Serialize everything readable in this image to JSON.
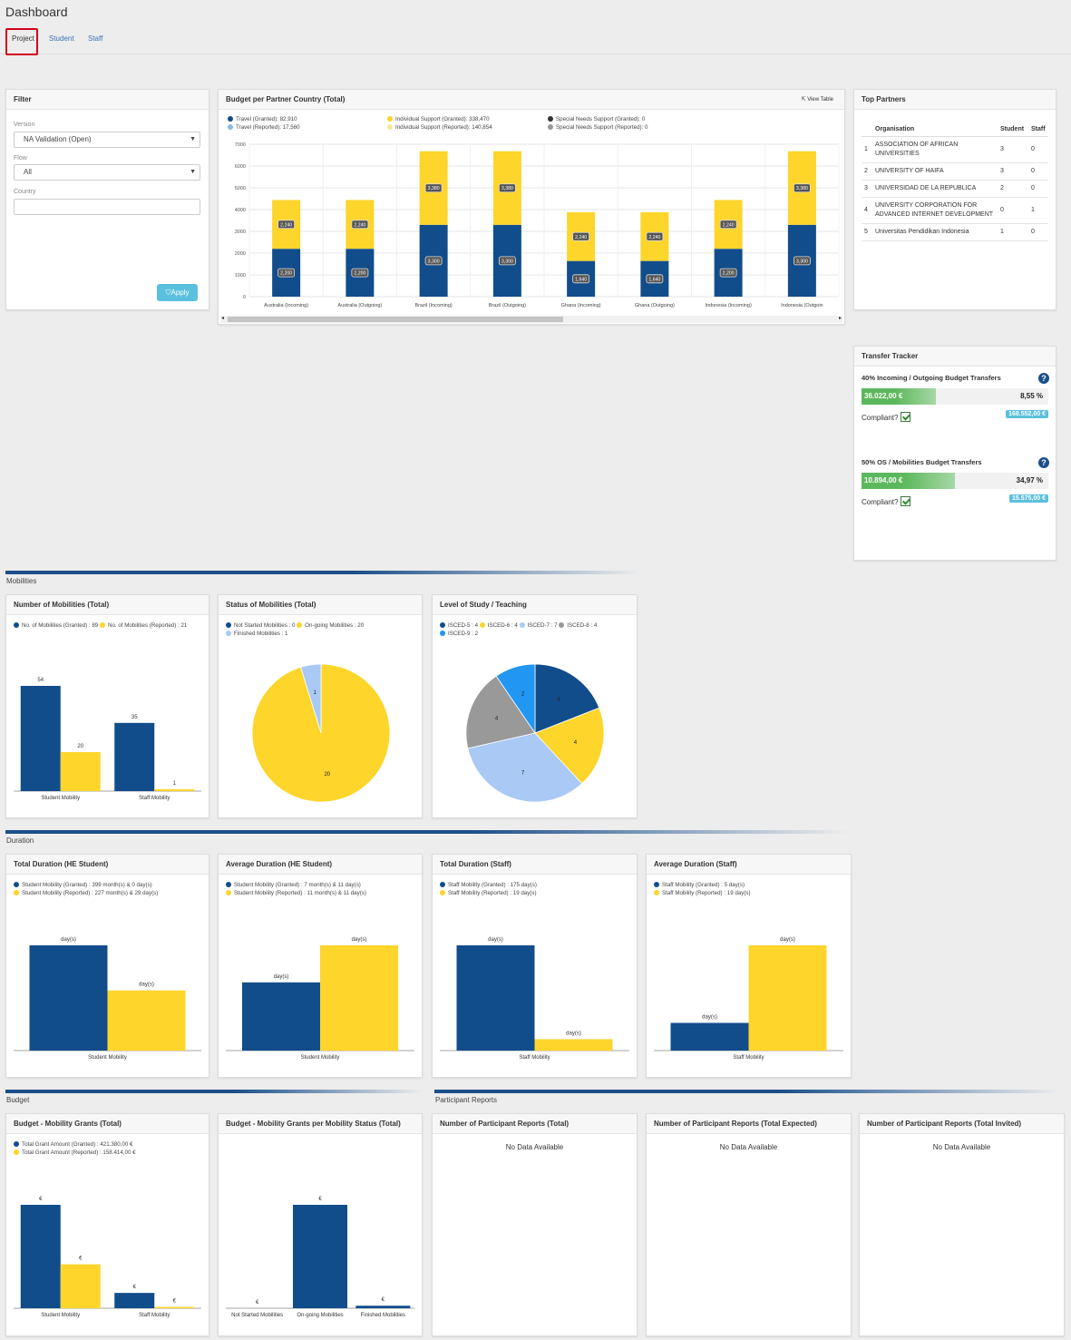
{
  "page_title": "Dashboard",
  "tabs": [
    {
      "label": "Project"
    },
    {
      "label": "Student"
    },
    {
      "label": "Staff"
    }
  ],
  "filter": {
    "title": "Filter",
    "version_label": "Version",
    "version_value": "NA Validation   (Open)",
    "flow_label": "Flow",
    "flow_value": "All",
    "country_label": "Country",
    "country_value": "",
    "apply_label": "Apply"
  },
  "budget_country": {
    "title": "Budget per Partner Country (Total)",
    "view_table": "View Table",
    "legend": [
      {
        "text": "Travel (Granted): 82,910",
        "color": "#124d8b"
      },
      {
        "text": "Travel (Reported): 17,560",
        "color": "#8ab8e6"
      },
      {
        "text": "Individual Support (Granted): 338,470",
        "color": "#fdd52b"
      },
      {
        "text": "Individual Support (Reported): 140,854",
        "color": "#f5e7a0"
      },
      {
        "text": "Special Needs Support (Granted): 0",
        "color": "#333333"
      },
      {
        "text": "Special Needs Support (Reported): 0",
        "color": "#999999"
      }
    ]
  },
  "top_partners": {
    "title": "Top Partners",
    "headers": [
      "Organisation",
      "Student",
      "Staff"
    ],
    "rows": [
      {
        "n": "1",
        "org": "ASSOCIATION OF AFRICAN UNIVERSITIES",
        "student": "3",
        "staff": "0"
      },
      {
        "n": "2",
        "org": "UNIVERSITY OF HAIFA",
        "student": "3",
        "staff": "0"
      },
      {
        "n": "3",
        "org": "UNIVERSIDAD DE LA REPUBLICA",
        "student": "2",
        "staff": "0"
      },
      {
        "n": "4",
        "org": "UNIVERSITY CORPORATION FOR ADVANCED INTERNET DEVELOPMENT",
        "student": "0",
        "staff": "1"
      },
      {
        "n": "5",
        "org": "Universitas Pendidikan Indonesia",
        "student": "1",
        "staff": "0"
      }
    ]
  },
  "transfer_tracker": {
    "title": "Transfer Tracker",
    "items": [
      {
        "title": "40% Incoming / Outgoing Budget Transfers",
        "amount": "36.022,00 €",
        "percent": "8,55 %",
        "fill": 0.4,
        "compliant": "Compliant?",
        "total": "168.552,00 €"
      },
      {
        "title": "50% OS / Mobilities Budget Transfers",
        "amount": "10.894,00 €",
        "percent": "34,97 %",
        "fill": 0.5,
        "compliant": "Compliant?",
        "total": "15.575,00 €"
      }
    ]
  },
  "sections": {
    "mobilities": "Mobilities",
    "duration": "Duration",
    "budget": "Budget",
    "participant_reports": "Participant Reports"
  },
  "num_mobilities": {
    "title": "Number of Mobilities (Total)",
    "legend": [
      {
        "text": "No. of Mobilities (Granted) : 89",
        "color": "#124d8b"
      },
      {
        "text": "No. of Mobilities (Reported) : 21",
        "color": "#fdd52b"
      }
    ]
  },
  "status_mobilities": {
    "title": "Status of Mobilities (Total)",
    "legend": [
      {
        "text": "Not Started Mobilities : 0",
        "color": "#124d8b"
      },
      {
        "text": "On-going Mobilities : 20",
        "color": "#fdd52b"
      },
      {
        "text": "Finished Mobilities : 1",
        "color": "#aac9f5"
      }
    ]
  },
  "level_study": {
    "title": "Level of Study / Teaching",
    "legend": [
      {
        "text": "ISCED-5 : 4",
        "color": "#124d8b"
      },
      {
        "text": "ISCED-6 : 4",
        "color": "#fdd52b"
      },
      {
        "text": "ISCED-7 : 7",
        "color": "#aac9f5"
      },
      {
        "text": "ISCED-8 : 4",
        "color": "#999999"
      },
      {
        "text": "ISCED-9 : 2",
        "color": "#2196f3"
      }
    ]
  },
  "total_duration_he": {
    "title": "Total Duration (HE Student)",
    "legend": [
      {
        "text": "Student Mobility (Granted) : 399 month(s) & 0 day(s)",
        "color": "#124d8b"
      },
      {
        "text": "Student Mobility (Reported) : 227 month(s) & 29 day(s)",
        "color": "#fdd52b"
      }
    ]
  },
  "avg_duration_he": {
    "title": "Average Duration (HE Student)",
    "legend": [
      {
        "text": "Student Mobility (Granted) : 7 month(s) & 11 day(s)",
        "color": "#124d8b"
      },
      {
        "text": "Student Mobility (Reported) : 11 month(s) & 11 day(s)",
        "color": "#fdd52b"
      }
    ]
  },
  "total_duration_staff": {
    "title": "Total Duration (Staff)",
    "legend": [
      {
        "text": "Staff Mobility (Granted) : 175 day(s)",
        "color": "#124d8b"
      },
      {
        "text": "Staff Mobility (Reported) : 19 day(s)",
        "color": "#fdd52b"
      }
    ]
  },
  "avg_duration_staff": {
    "title": "Average Duration (Staff)",
    "legend": [
      {
        "text": "Staff Mobility (Granted) : 5 day(s)",
        "color": "#124d8b"
      },
      {
        "text": "Staff Mobility (Reported) : 19 day(s)",
        "color": "#fdd52b"
      }
    ]
  },
  "budget_grants": {
    "title": "Budget - Mobility Grants (Total)",
    "legend": [
      {
        "text": "Total Grant Amount (Granted) : 421.380,00 €",
        "color": "#124d8b"
      },
      {
        "text": "Total Grant Amount (Reported) : 158.414,00 €",
        "color": "#fdd52b"
      }
    ]
  },
  "budget_status": {
    "title": "Budget - Mobility Grants per Mobility Status (Total)"
  },
  "reports_total": {
    "title": "Number of Participant Reports (Total)",
    "nodata": "No Data Available"
  },
  "reports_expected": {
    "title": "Number of Participant Reports (Total Expected)",
    "nodata": "No Data Available"
  },
  "reports_invited": {
    "title": "Number of Participant Reports (Total Invited)",
    "nodata": "No Data Available"
  },
  "chart_data": [
    {
      "id": "budget_country",
      "type": "bar",
      "stacked": true,
      "categories": [
        "Australia (Incoming)",
        "Australia (Outgoing)",
        "Brazil (Incoming)",
        "Brazil (Outgoing)",
        "Ghana (Incoming)",
        "Ghana (Outgoing)",
        "Indonesia (Incoming)",
        "Indonesia (Outgoin"
      ],
      "series": [
        {
          "name": "Travel (Granted)",
          "values": [
            2200,
            2200,
            3300,
            3300,
            1640,
            1640,
            2200,
            3300
          ],
          "labels": [
            "2,200",
            "2,200",
            "3,300",
            "3,300",
            "1,640",
            "1,640",
            "2,200",
            "3,300"
          ],
          "color": "#124d8b"
        },
        {
          "name": "Individual Support (Granted)",
          "values": [
            2240,
            2240,
            3380,
            3380,
            2240,
            2240,
            2240,
            3380
          ],
          "labels": [
            "2,240",
            "2,240",
            "3,380",
            "3,380",
            "2,240",
            "2,240",
            "2,240",
            "3,380"
          ],
          "color": "#fdd52b"
        }
      ],
      "yticks": [
        "0",
        "1000",
        "2000",
        "3000",
        "4000",
        "5000",
        "6000",
        "7000"
      ],
      "ylim": [
        0,
        7000
      ]
    },
    {
      "id": "num_mobilities",
      "type": "bar",
      "categories": [
        "Student Mobility",
        "Staff Mobility"
      ],
      "series": [
        {
          "name": "No. of Mobilities (Granted)",
          "values": [
            54,
            35
          ],
          "labels": [
            "54",
            "35"
          ],
          "color": "#124d8b"
        },
        {
          "name": "No. of Mobilities (Reported)",
          "values": [
            20,
            1
          ],
          "labels": [
            "20",
            "1"
          ],
          "color": "#fdd52b"
        }
      ],
      "ylim": [
        0,
        60
      ]
    },
    {
      "id": "status_mobilities",
      "type": "pie",
      "slices": [
        {
          "name": "On-going Mobilities",
          "value": 20,
          "label": "20",
          "color": "#fdd52b"
        },
        {
          "name": "Finished Mobilities",
          "value": 1,
          "label": "1",
          "color": "#aac9f5"
        }
      ]
    },
    {
      "id": "level_study",
      "type": "pie",
      "slices": [
        {
          "name": "ISCED-5",
          "value": 4,
          "label": "4",
          "color": "#124d8b"
        },
        {
          "name": "ISCED-6",
          "value": 4,
          "label": "4",
          "color": "#fdd52b"
        },
        {
          "name": "ISCED-7",
          "value": 7,
          "label": "7",
          "color": "#aac9f5"
        },
        {
          "name": "ISCED-8",
          "value": 4,
          "label": "4",
          "color": "#999999"
        },
        {
          "name": "ISCED-9",
          "value": 2,
          "label": "2",
          "color": "#2196f3"
        }
      ]
    },
    {
      "id": "total_duration_he",
      "type": "bar",
      "categories": [
        "Student Mobility"
      ],
      "series": [
        {
          "name": "Student Mobility (Granted)",
          "values": [
            399
          ],
          "labels": [
            "day(s)"
          ],
          "color": "#124d8b"
        },
        {
          "name": "Student Mobility (Reported)",
          "values": [
            227.97
          ],
          "labels": [
            "day(s)"
          ],
          "color": "#fdd52b"
        }
      ]
    },
    {
      "id": "avg_duration_he",
      "type": "bar",
      "categories": [
        "Student Mobility"
      ],
      "series": [
        {
          "name": "Student Mobility (Granted)",
          "values": [
            7.37
          ],
          "labels": [
            "day(s)"
          ],
          "color": "#124d8b"
        },
        {
          "name": "Student Mobility (Reported)",
          "values": [
            11.37
          ],
          "labels": [
            "day(s)"
          ],
          "color": "#fdd52b"
        }
      ]
    },
    {
      "id": "total_duration_staff",
      "type": "bar",
      "categories": [
        "Staff Mobility"
      ],
      "series": [
        {
          "name": "Staff Mobility (Granted)",
          "values": [
            175
          ],
          "labels": [
            "day(s)"
          ],
          "color": "#124d8b"
        },
        {
          "name": "Staff Mobility (Reported)",
          "values": [
            19
          ],
          "labels": [
            "day(s)"
          ],
          "color": "#fdd52b"
        }
      ]
    },
    {
      "id": "avg_duration_staff",
      "type": "bar",
      "categories": [
        "Staff Mobility"
      ],
      "series": [
        {
          "name": "Staff Mobility (Granted)",
          "values": [
            5
          ],
          "labels": [
            "day(s)"
          ],
          "color": "#124d8b"
        },
        {
          "name": "Staff Mobility (Reported)",
          "values": [
            19
          ],
          "labels": [
            "day(s)"
          ],
          "color": "#fdd52b"
        }
      ]
    },
    {
      "id": "budget_grants",
      "type": "bar",
      "categories": [
        "Student Mobility",
        "Staff Mobility"
      ],
      "series": [
        {
          "name": "Total Grant Amount (Granted)",
          "values": [
            367000,
            54380
          ],
          "labels": [
            "€",
            "€"
          ],
          "color": "#124d8b"
        },
        {
          "name": "Total Grant Amount (Reported)",
          "values": [
            156000,
            2414
          ],
          "labels": [
            "€",
            "€"
          ],
          "color": "#fdd52b"
        }
      ]
    },
    {
      "id": "budget_status",
      "type": "bar",
      "categories": [
        "Not Started Mobilities",
        "On-going Mobilities",
        "Finished Mobilities"
      ],
      "series": [
        {
          "name": "Granted",
          "values": [
            0,
            410000,
            10000
          ],
          "labels": [
            "€",
            "€",
            "€"
          ],
          "color": "#124d8b"
        }
      ]
    }
  ]
}
